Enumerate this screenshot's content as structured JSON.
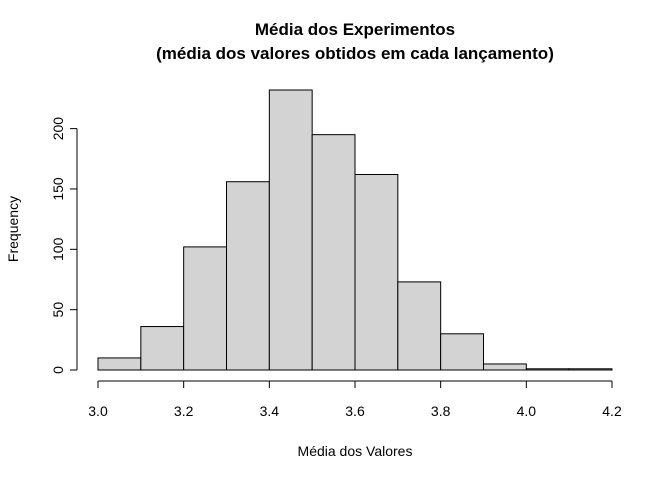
{
  "chart_data": {
    "type": "bar",
    "title": "Média dos Experimentos",
    "subtitle": "(média dos valores obtidos em cada lançamento)",
    "xlabel": "Média dos Valores",
    "ylabel": "Frequency",
    "bins": [
      {
        "start": 3.0,
        "end": 3.1,
        "count": 10
      },
      {
        "start": 3.1,
        "end": 3.2,
        "count": 36
      },
      {
        "start": 3.2,
        "end": 3.3,
        "count": 102
      },
      {
        "start": 3.3,
        "end": 3.4,
        "count": 156
      },
      {
        "start": 3.4,
        "end": 3.5,
        "count": 232
      },
      {
        "start": 3.5,
        "end": 3.6,
        "count": 195
      },
      {
        "start": 3.6,
        "end": 3.7,
        "count": 162
      },
      {
        "start": 3.7,
        "end": 3.8,
        "count": 73
      },
      {
        "start": 3.8,
        "end": 3.9,
        "count": 30
      },
      {
        "start": 3.9,
        "end": 4.0,
        "count": 5
      },
      {
        "start": 4.0,
        "end": 4.1,
        "count": 1
      },
      {
        "start": 4.1,
        "end": 4.2,
        "count": 1
      }
    ],
    "xlim": [
      3.0,
      4.2
    ],
    "ylim": [
      0,
      232
    ],
    "xticks": [
      "3.0",
      "3.2",
      "3.4",
      "3.6",
      "3.8",
      "4.0",
      "4.2"
    ],
    "yticks": [
      "0",
      "50",
      "100",
      "150",
      "200"
    ],
    "grid": false,
    "bar_color": "#d3d3d3",
    "edge_color": "#000000"
  }
}
